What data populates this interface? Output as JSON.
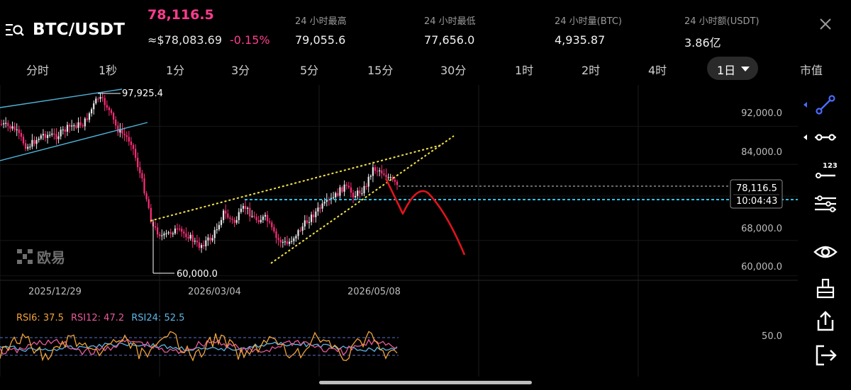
{
  "header": {
    "pair": "BTC/USDT",
    "last_price": "78,116.5",
    "approx_price": "≈$78,083.69",
    "change_pct": "-0.15%",
    "stats": [
      {
        "label": "24 小时最高",
        "value": "79,055.6"
      },
      {
        "label": "24 小时最低",
        "value": "77,656.0"
      },
      {
        "label": "24 小时量(BTC)",
        "value": "4,935.87"
      },
      {
        "label": "24 小时额(USDT)",
        "value": "3.86亿"
      }
    ]
  },
  "tabs": [
    "分时",
    "1秒",
    "1分",
    "3分",
    "5分",
    "15分",
    "30分",
    "1时",
    "2时",
    "4时",
    "1日",
    "市值"
  ],
  "active_tab": "1日",
  "colors": {
    "up": "#e8e8e8",
    "down": "#ff2d78",
    "price_accent": "#ff3c8e",
    "channel_line": "#4fb3d9",
    "wedge_line": "#f4e34a",
    "projection": "#e0141c",
    "support_line": "#29c2e6",
    "rsi6": "#f2a33a",
    "rsi12": "#e85a9b",
    "rsi24": "#5fb6e6",
    "toolbar_active": "#4a6cff"
  },
  "chart": {
    "y_labels": [
      "92,000.0",
      "84,000.0",
      "68,000.0",
      "60,000.0"
    ],
    "x_labels": [
      "2025/12/29",
      "2026/03/04",
      "2026/05/08"
    ],
    "high_annotation": "97,925.4",
    "low_annotation": "60,000.0",
    "current_price": "78,116.5",
    "countdown": "10:04:43",
    "rsi_level": "50.0"
  },
  "rsi": {
    "rsi6_label": "RSI6: 37.5",
    "rsi12_label": "RSI12: 47.2",
    "rsi24_label": "RSI24: 52.5"
  },
  "watermark": "欧易",
  "toolbar_icons": [
    "trend-line-icon",
    "horizontal-line-icon",
    "numbered-tool-icon",
    "indicator-settings-icon",
    "eye-icon",
    "clear-brush-icon",
    "share-icon",
    "exit-icon"
  ],
  "chart_data": {
    "type": "candlestick",
    "y_ticks": [
      60000,
      68000,
      84000,
      92000
    ],
    "x_ticks": [
      "2025/12/29",
      "2026/03/04",
      "2026/05/08"
    ],
    "high_marker": 97925.4,
    "low_marker": 60000.0,
    "last_price": 78116.5,
    "rsi_reference": 50.0
  }
}
